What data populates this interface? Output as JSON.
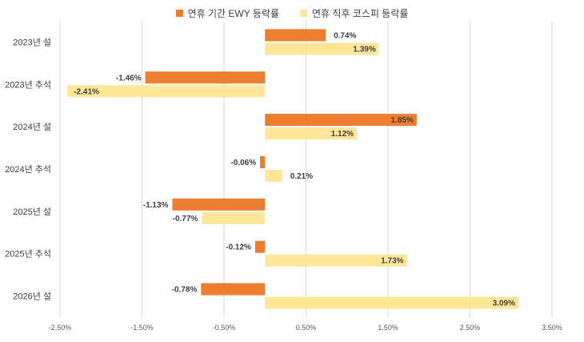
{
  "chart_data": {
    "type": "bar",
    "orientation": "horizontal",
    "title": "",
    "categories": [
      "2023년 설",
      "2023년 추석",
      "2024년 설",
      "2024년 추석",
      "2025년 설",
      "2025년 추석",
      "2026년 설"
    ],
    "series": [
      {
        "name": "연휴 기간 EWY 등락률",
        "color": "#ED7D31",
        "values": [
          0.74,
          -1.46,
          1.85,
          -0.06,
          -1.13,
          -0.12,
          -0.78
        ],
        "labels": [
          "0.74%",
          "-1.46%",
          "1.85%",
          "-0.06%",
          "-1.13%",
          "-0.12%",
          "-0.78%"
        ]
      },
      {
        "name": "연휴 직후 코스피 등락률",
        "color": "#FFE699",
        "values": [
          1.39,
          -2.41,
          1.12,
          0.21,
          -0.77,
          1.73,
          3.09
        ],
        "labels": [
          "1.39%",
          "-2.41%",
          "1.12%",
          "0.21%",
          "-0.77%",
          "1.73%",
          "3.09%"
        ]
      }
    ],
    "xlim": [
      -2.5,
      3.5
    ],
    "xticks": [
      -2.5,
      -1.5,
      -0.5,
      0.5,
      1.5,
      2.5,
      3.5
    ],
    "xtick_labels": [
      "-2.50%",
      "-1.50%",
      "-0.50%",
      "0.50%",
      "1.50%",
      "2.50%",
      "3.50%"
    ],
    "xlabel": "",
    "ylabel": "",
    "grid": "vertical",
    "legend_position": "top-center"
  }
}
